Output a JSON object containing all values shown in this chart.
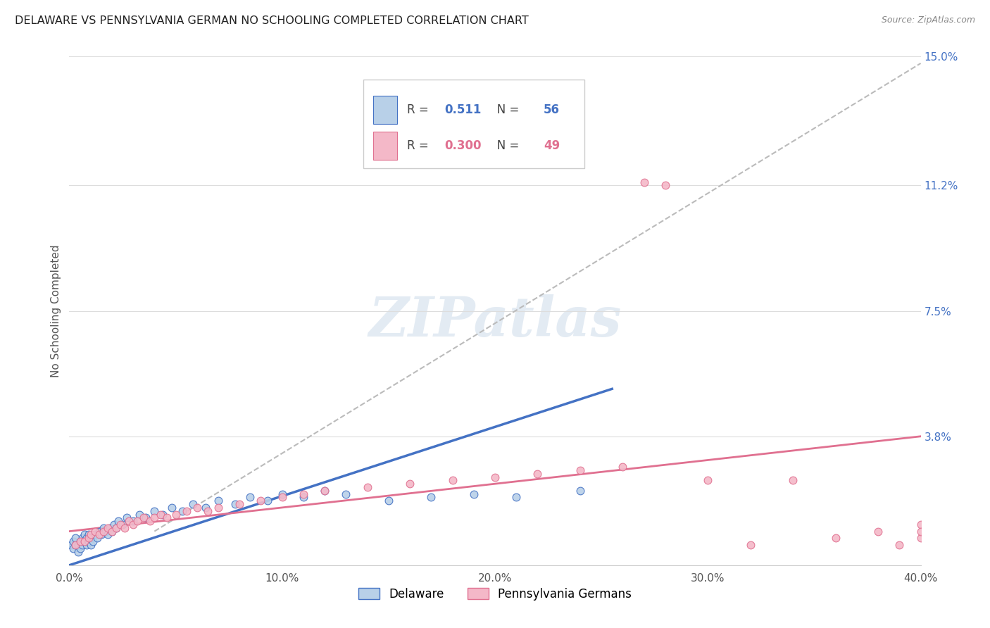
{
  "title": "DELAWARE VS PENNSYLVANIA GERMAN NO SCHOOLING COMPLETED CORRELATION CHART",
  "source": "Source: ZipAtlas.com",
  "ylabel": "No Schooling Completed",
  "xlim": [
    0,
    0.4
  ],
  "ylim": [
    0,
    0.15
  ],
  "xtick_positions": [
    0.0,
    0.1,
    0.2,
    0.3,
    0.4
  ],
  "xtick_labels": [
    "0.0%",
    "10.0%",
    "20.0%",
    "30.0%",
    "40.0%"
  ],
  "yticks_right": [
    0.038,
    0.075,
    0.112,
    0.15
  ],
  "ytick_labels_right": [
    "3.8%",
    "7.5%",
    "11.2%",
    "15.0%"
  ],
  "delaware_fill_color": "#b8d0e8",
  "delaware_edge_color": "#4472c4",
  "pa_fill_color": "#f4b8c8",
  "pa_edge_color": "#e07090",
  "delaware_line_color": "#4472c4",
  "pa_line_color": "#e07090",
  "dash_line_color": "#bbbbbb",
  "legend_r_delaware": "0.511",
  "legend_n_delaware": "56",
  "legend_r_pa": "0.300",
  "legend_n_pa": "49",
  "legend_label_delaware": "Delaware",
  "legend_label_pa": "Pennsylvania Germans",
  "watermark": "ZIPatlas",
  "background_color": "#ffffff",
  "grid_color": "#dddddd",
  "delaware_x": [
    0.001,
    0.002,
    0.002,
    0.003,
    0.003,
    0.004,
    0.004,
    0.005,
    0.005,
    0.006,
    0.006,
    0.007,
    0.007,
    0.008,
    0.008,
    0.009,
    0.009,
    0.01,
    0.01,
    0.011,
    0.012,
    0.013,
    0.014,
    0.015,
    0.016,
    0.017,
    0.018,
    0.019,
    0.02,
    0.021,
    0.022,
    0.023,
    0.025,
    0.027,
    0.03,
    0.033,
    0.036,
    0.04,
    0.044,
    0.048,
    0.053,
    0.058,
    0.064,
    0.07,
    0.078,
    0.085,
    0.093,
    0.1,
    0.11,
    0.12,
    0.13,
    0.15,
    0.17,
    0.19,
    0.21,
    0.24
  ],
  "delaware_y": [
    0.006,
    0.005,
    0.007,
    0.006,
    0.008,
    0.004,
    0.006,
    0.005,
    0.007,
    0.006,
    0.008,
    0.007,
    0.009,
    0.006,
    0.008,
    0.007,
    0.009,
    0.006,
    0.008,
    0.007,
    0.009,
    0.008,
    0.01,
    0.009,
    0.011,
    0.01,
    0.009,
    0.011,
    0.01,
    0.012,
    0.011,
    0.013,
    0.012,
    0.014,
    0.013,
    0.015,
    0.014,
    0.016,
    0.015,
    0.017,
    0.016,
    0.018,
    0.017,
    0.019,
    0.018,
    0.02,
    0.019,
    0.021,
    0.02,
    0.022,
    0.021,
    0.019,
    0.02,
    0.021,
    0.02,
    0.022
  ],
  "pa_x": [
    0.003,
    0.005,
    0.007,
    0.009,
    0.01,
    0.012,
    0.014,
    0.016,
    0.018,
    0.02,
    0.022,
    0.024,
    0.026,
    0.028,
    0.03,
    0.032,
    0.035,
    0.038,
    0.04,
    0.043,
    0.046,
    0.05,
    0.055,
    0.06,
    0.065,
    0.07,
    0.08,
    0.09,
    0.1,
    0.11,
    0.12,
    0.14,
    0.16,
    0.18,
    0.2,
    0.22,
    0.24,
    0.26,
    0.27,
    0.28,
    0.3,
    0.32,
    0.34,
    0.36,
    0.38,
    0.39,
    0.4,
    0.4,
    0.4
  ],
  "pa_y": [
    0.006,
    0.007,
    0.007,
    0.008,
    0.009,
    0.01,
    0.009,
    0.01,
    0.011,
    0.01,
    0.011,
    0.012,
    0.011,
    0.013,
    0.012,
    0.013,
    0.014,
    0.013,
    0.014,
    0.015,
    0.014,
    0.015,
    0.016,
    0.017,
    0.016,
    0.017,
    0.018,
    0.019,
    0.02,
    0.021,
    0.022,
    0.023,
    0.024,
    0.025,
    0.026,
    0.027,
    0.028,
    0.029,
    0.113,
    0.112,
    0.025,
    0.006,
    0.025,
    0.008,
    0.01,
    0.006,
    0.012,
    0.008,
    0.01
  ]
}
